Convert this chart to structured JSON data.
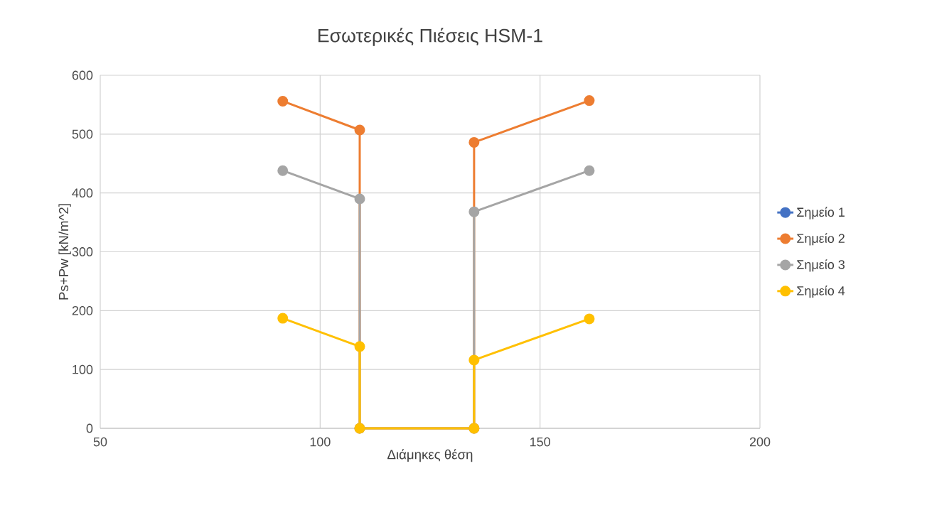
{
  "chart_data": {
    "type": "line",
    "title": "Εσωτερικές Πιέσεις  HSM-1",
    "xlabel": "Διάμηκες θέση",
    "ylabel": "Ps+Pw  [kN/m^2]",
    "xlim": [
      50,
      200
    ],
    "xticks": [
      50,
      100,
      150,
      200
    ],
    "ylim": [
      0,
      600
    ],
    "yticks": [
      0,
      100,
      200,
      300,
      400,
      500,
      600
    ],
    "grid": true,
    "legend": "right",
    "marker": "circle",
    "line_style": "solid",
    "x": [
      91.5,
      109,
      109,
      135,
      135,
      161.2
    ],
    "series": [
      {
        "name": "Σημείο 1",
        "color": "#4472c4",
        "values": [
          null,
          null,
          null,
          null,
          null,
          null
        ]
      },
      {
        "name": "Σημείο 2",
        "color": "#ed7d31",
        "values": [
          556,
          507,
          0,
          0,
          486,
          557
        ]
      },
      {
        "name": "Σημείο 3",
        "color": "#a5a5a5",
        "values": [
          438,
          390,
          0,
          0,
          368,
          438
        ]
      },
      {
        "name": "Σημείο 4",
        "color": "#ffc000",
        "values": [
          187,
          139,
          0,
          0,
          116,
          186
        ]
      }
    ]
  }
}
